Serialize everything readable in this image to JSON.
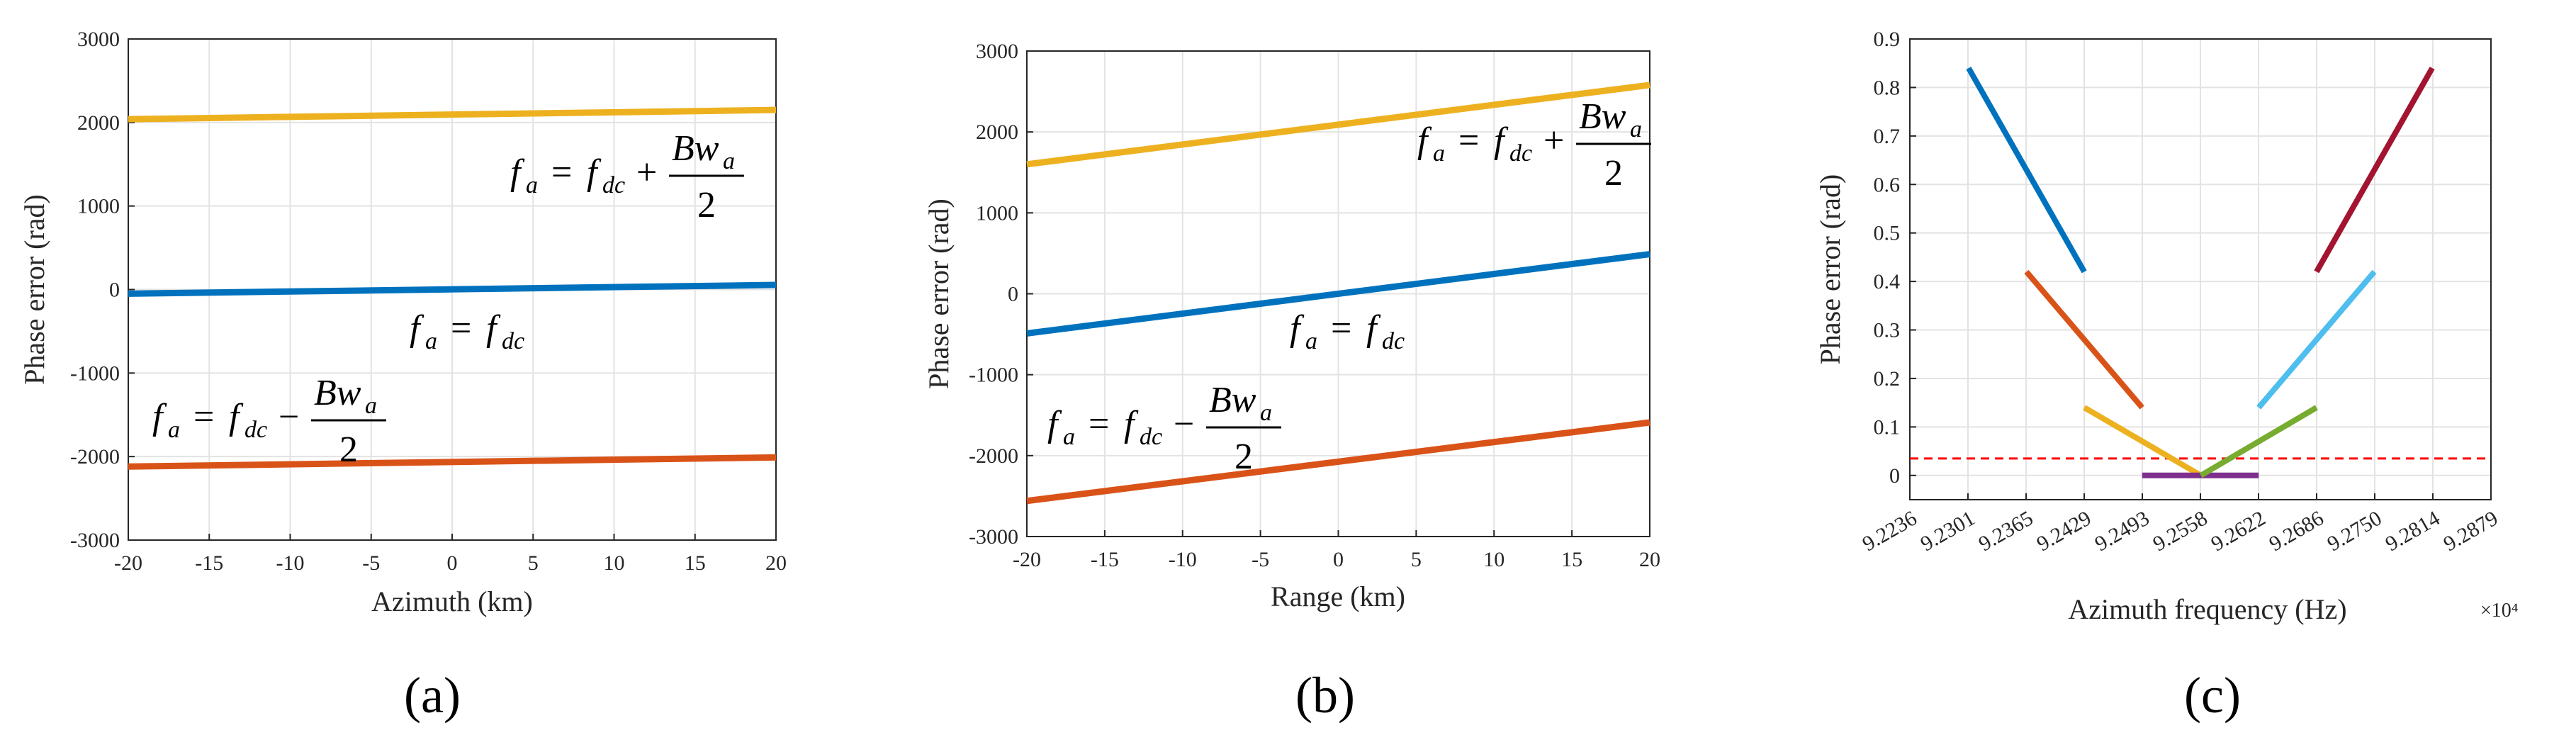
{
  "chart_data": [
    {
      "type": "line",
      "panel_label": "(a)",
      "xlabel": "Azimuth (km)",
      "ylabel": "Phase error (rad)",
      "xlim": [
        -20,
        20
      ],
      "ylim": [
        -3000,
        3000
      ],
      "xticks": [
        -20,
        -15,
        -10,
        -5,
        0,
        5,
        10,
        15,
        20
      ],
      "yticks": [
        -3000,
        -2000,
        -1000,
        0,
        1000,
        2000,
        3000
      ],
      "series": [
        {
          "name": "fa = fdc + Bwa/2",
          "color": "#EDB120",
          "x": [
            -20,
            20
          ],
          "y": [
            2040,
            2150
          ]
        },
        {
          "name": "fa = fdc",
          "color": "#0072BD",
          "x": [
            -20,
            20
          ],
          "y": [
            -50,
            55
          ]
        },
        {
          "name": "fa = fdc - Bwa/2",
          "color": "#D95319",
          "x": [
            -20,
            20
          ],
          "y": [
            -2120,
            -2010
          ]
        }
      ],
      "annotations": [
        {
          "sign": "+",
          "series": 0
        },
        {
          "sign": "",
          "series": 1
        },
        {
          "sign": "−",
          "series": 2
        }
      ]
    },
    {
      "type": "line",
      "panel_label": "(b)",
      "xlabel": "Range (km)",
      "ylabel": "Phase error (rad)",
      "xlim": [
        -20,
        20
      ],
      "ylim": [
        -3000,
        3000
      ],
      "xticks": [
        -20,
        -15,
        -10,
        -5,
        0,
        5,
        10,
        15,
        20
      ],
      "yticks": [
        -3000,
        -2000,
        -1000,
        0,
        1000,
        2000,
        3000
      ],
      "series": [
        {
          "name": "fa = fdc + Bwa/2",
          "color": "#EDB120",
          "x": [
            -20,
            20
          ],
          "y": [
            1600,
            2580
          ]
        },
        {
          "name": "fa = fdc",
          "color": "#0072BD",
          "x": [
            -20,
            20
          ],
          "y": [
            -490,
            490
          ]
        },
        {
          "name": "fa = fdc - Bwa/2",
          "color": "#D95319",
          "x": [
            -20,
            20
          ],
          "y": [
            -2560,
            -1590
          ]
        }
      ],
      "annotations": [
        {
          "sign": "+",
          "series": 0
        },
        {
          "sign": "",
          "series": 1
        },
        {
          "sign": "−",
          "series": 2
        }
      ]
    },
    {
      "type": "line",
      "panel_label": "(c)",
      "xlabel": "Azimuth frequency (Hz)",
      "ylabel": "Phase error (rad)",
      "x_multiplier": "×10⁴",
      "xlim": [
        9.2236,
        9.2879
      ],
      "ylim": [
        -0.05,
        0.9
      ],
      "xticks": [
        "9.2236",
        "9.2301",
        "9.2365",
        "9.2429",
        "9.2493",
        "9.2558",
        "9.2622",
        "9.2686",
        "9.2750",
        "9.2814",
        "9.2879"
      ],
      "yticks": [
        "0",
        "0.1",
        "0.2",
        "0.3",
        "0.4",
        "0.5",
        "0.6",
        "0.7",
        "0.8",
        "0.9"
      ],
      "threshold": {
        "value": 0.035,
        "color": "#FF0000",
        "style": "dashed"
      },
      "series": [
        {
          "color": "#0072BD",
          "x": [
            9.2301,
            9.2429
          ],
          "y": [
            0.84,
            0.42
          ]
        },
        {
          "color": "#D95319",
          "x": [
            9.2365,
            9.2493
          ],
          "y": [
            0.42,
            0.14
          ]
        },
        {
          "color": "#EDB120",
          "x": [
            9.2429,
            9.2558
          ],
          "y": [
            0.14,
            0.0
          ]
        },
        {
          "color": "#7E2F8E",
          "x": [
            9.2493,
            9.2622
          ],
          "y": [
            0.0,
            0.0
          ]
        },
        {
          "color": "#77AC30",
          "x": [
            9.2558,
            9.2686
          ],
          "y": [
            0.0,
            0.14
          ]
        },
        {
          "color": "#4DBEEE",
          "x": [
            9.2622,
            9.275
          ],
          "y": [
            0.14,
            0.42
          ]
        },
        {
          "color": "#A2142F",
          "x": [
            9.2686,
            9.2814
          ],
          "y": [
            0.42,
            0.84
          ]
        }
      ]
    }
  ]
}
